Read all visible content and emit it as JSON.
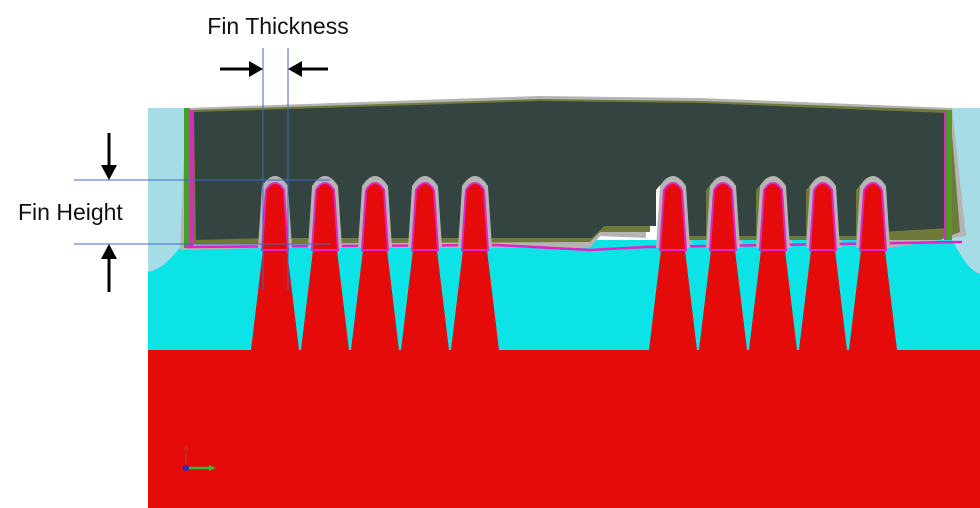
{
  "annotations": {
    "fin_thickness": "Fin Thickness",
    "fin_height": "Fin Height"
  },
  "regions": {
    "substrate": {
      "color": "#e60b0b"
    },
    "fins": {
      "count_left": 5,
      "count_right": 5,
      "color": "#e60b0b",
      "liner_color": "#e024c8"
    },
    "isolation_oxide": {
      "color": "#0ce3e6"
    },
    "edge_spacer": {
      "color": "#a6dce6"
    },
    "gate_fill": {
      "color": "#344440"
    },
    "conformal_layers": {
      "colors": [
        "#a0a0a0",
        "#c8c8c8",
        "#6f7a3a",
        "#4c9a2a"
      ]
    }
  },
  "dimension_lines": {
    "color": "#3c6ac8"
  },
  "arrows": {
    "color": "#000000"
  },
  "axis_triad": {
    "x_color": "#2bbf3a",
    "y_color": "#d02020",
    "z_color": "#2030c0"
  }
}
